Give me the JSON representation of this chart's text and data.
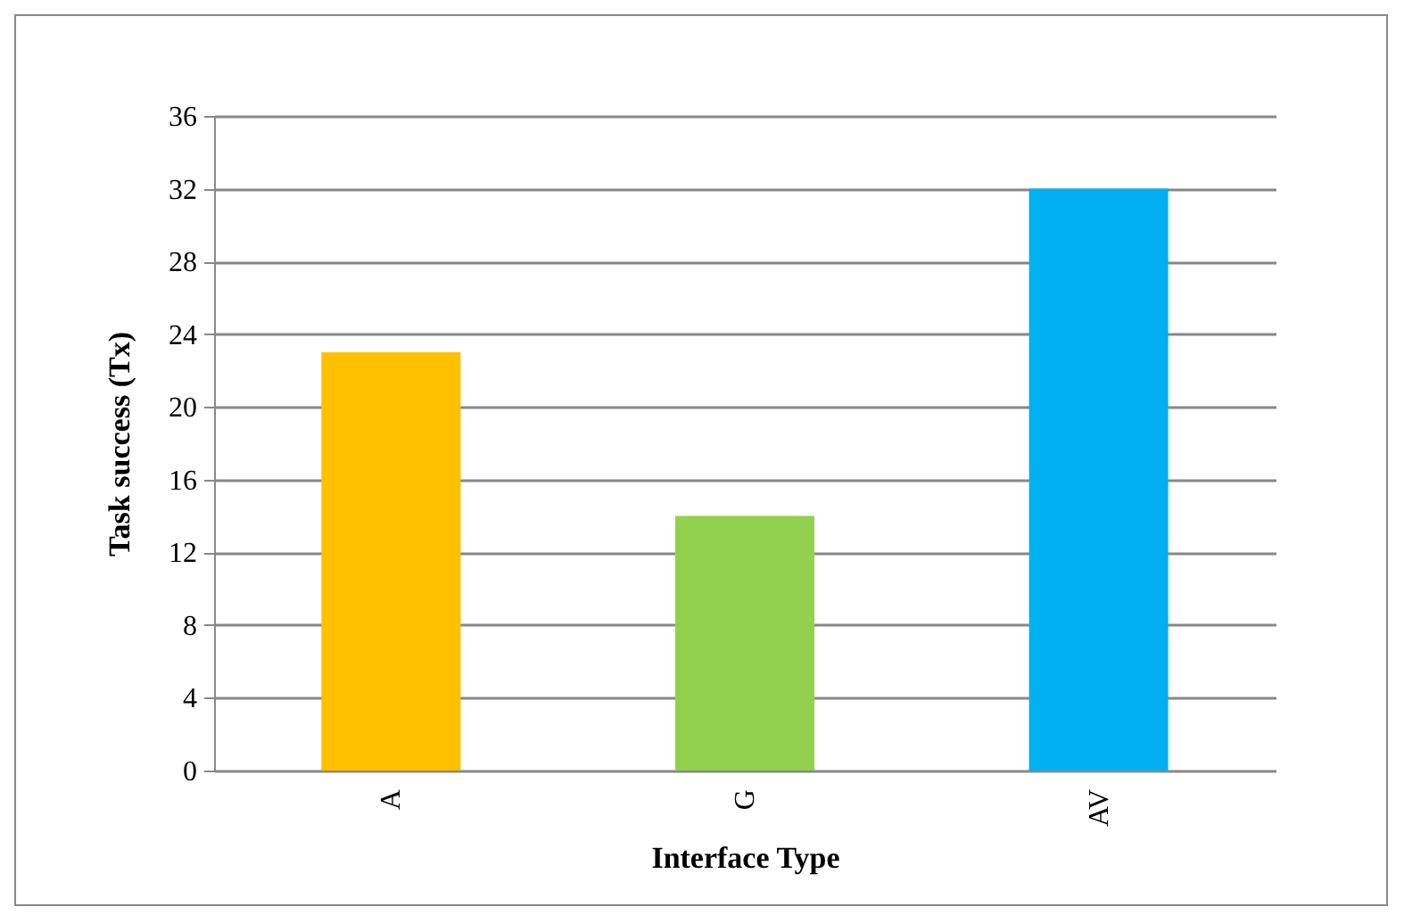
{
  "chart_data": {
    "type": "bar",
    "xlabel": "Interface Type",
    "ylabel": "Task success (Tx)",
    "categories": [
      "A",
      "G",
      "AV"
    ],
    "values": [
      23,
      14,
      32
    ],
    "colors": [
      "#ffc000",
      "#92d050",
      "#00b0f0"
    ],
    "ylim": [
      0,
      36
    ],
    "yticks": [
      0,
      4,
      8,
      12,
      16,
      20,
      24,
      28,
      32,
      36
    ],
    "grid": "y"
  }
}
